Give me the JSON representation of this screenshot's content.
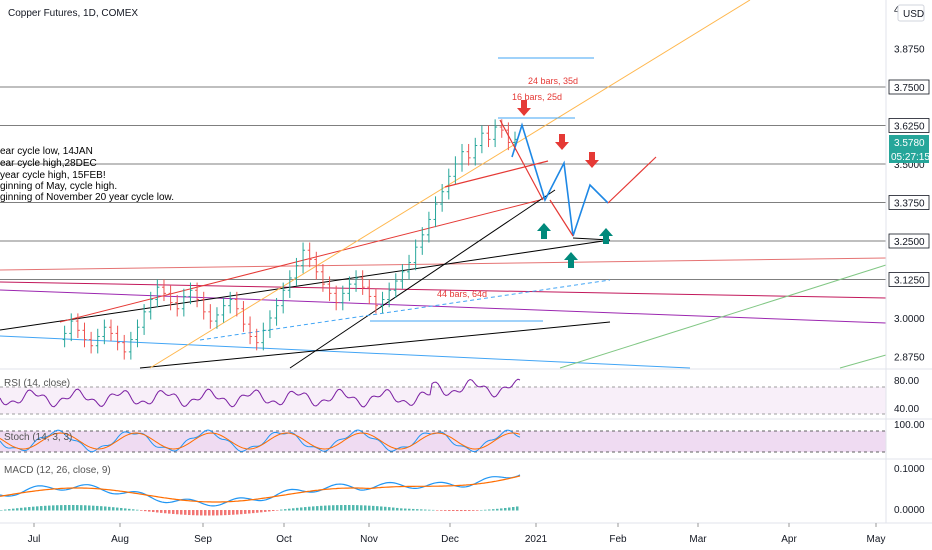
{
  "title": "Copper Futures, 1D, COMEX",
  "currency": "USD",
  "annotation_lines": [
    "ear cycle low, 14JAN",
    "ear cycle high,28DEC",
    "year cycle high, 15FEB!",
    "ginning of May, cycle high.",
    "ginning of November 20 year cycle low."
  ],
  "labels": {
    "bars24": "24 bars, 35d",
    "bars16": "16 bars, 25d",
    "bars44": "44 bars, 64d"
  },
  "price_badges": {
    "current": "3.5780",
    "countdown": "05:27:15"
  },
  "colors": {
    "up": "#26a69a",
    "down": "#ef5350",
    "macd": "#2196f3",
    "signal": "#ff6d00",
    "rsi": "#7b1fa2",
    "stoch_k": "#2196f3",
    "stoch_d": "#ff6d00",
    "arrow_up": "#00897b",
    "arrow_down": "#e53935"
  },
  "chart_data": {
    "type": "candlestick",
    "price_axis": {
      "ticks": [
        "3.8750",
        "3.7500",
        "3.6250",
        "3.5000",
        "3.3750",
        "3.2500",
        "3.1250",
        "3.0000",
        "2.8750"
      ],
      "top_tick": "4"
    },
    "time_axis": {
      "ticks": [
        "Jul",
        "Aug",
        "Sep",
        "Oct",
        "Nov",
        "Dec",
        "2021",
        "Feb",
        "Mar",
        "Apr",
        "May"
      ]
    },
    "horizontal_levels": [
      3.75,
      3.625,
      3.5,
      3.375,
      3.25,
      3.125
    ],
    "ohlc_path": [
      2.93,
      2.95,
      2.99,
      2.96,
      2.93,
      2.91,
      2.94,
      2.97,
      2.95,
      2.92,
      2.89,
      2.93,
      2.97,
      3.02,
      3.06,
      3.1,
      3.08,
      3.05,
      3.03,
      3.07,
      3.09,
      3.06,
      3.02,
      2.99,
      3.01,
      3.04,
      3.06,
      3.03,
      2.98,
      2.94,
      2.92,
      2.96,
      3.0,
      3.04,
      3.09,
      3.13,
      3.17,
      3.22,
      3.19,
      3.15,
      3.11,
      3.08,
      3.05,
      3.08,
      3.11,
      3.13,
      3.1,
      3.07,
      3.04,
      3.06,
      3.09,
      3.12,
      3.15,
      3.18,
      3.23,
      3.27,
      3.32,
      3.37,
      3.41,
      3.46,
      3.5,
      3.54,
      3.52,
      3.56,
      3.6,
      3.58,
      3.62,
      3.61,
      3.57,
      3.58
    ],
    "indicators": {
      "rsi": {
        "label": "RSI (14, close)",
        "ticks": [
          "80.00",
          "40.00"
        ]
      },
      "stoch": {
        "label": "Stoch (14, 3, 3)",
        "ticks": [
          "100.00"
        ]
      },
      "macd": {
        "label": "MACD (12, 26, close, 9)",
        "ticks": [
          "0.1000",
          "0.0000"
        ]
      }
    }
  }
}
